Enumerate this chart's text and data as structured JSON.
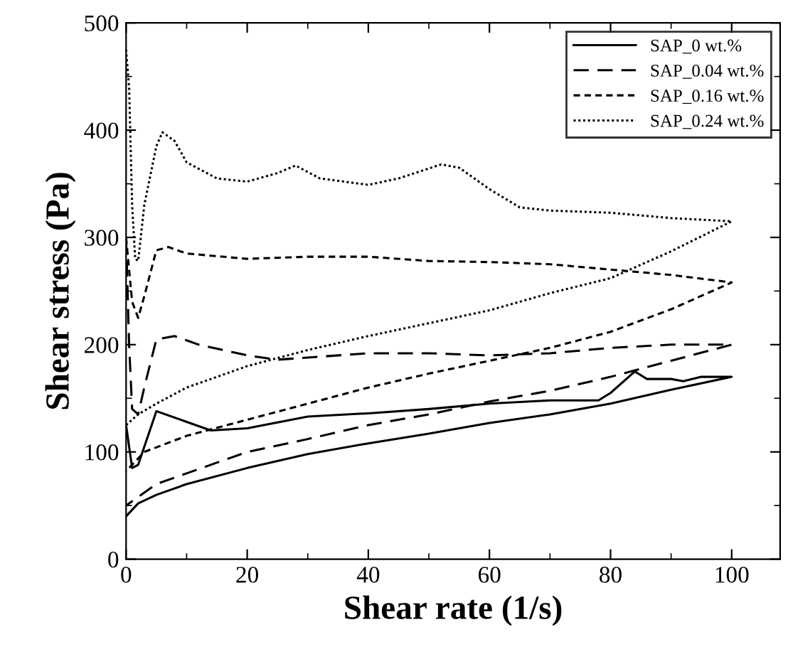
{
  "chart_data": {
    "type": "line",
    "xlabel": "Shear rate (1/s)",
    "ylabel": "Shear stress (Pa)",
    "xlim": [
      0,
      108
    ],
    "ylim": [
      0,
      500
    ],
    "xticks": [
      0,
      20,
      40,
      60,
      80,
      100
    ],
    "yticks": [
      0,
      100,
      200,
      300,
      400,
      500
    ],
    "legend": "top right",
    "grid": false,
    "marker": "none",
    "series": [
      {
        "name": "SAP_0 wt.%",
        "color": "#000000",
        "line_style": "solid",
        "x": [
          0,
          1,
          2,
          5,
          10,
          14,
          20,
          30,
          40,
          50,
          60,
          70,
          78,
          80,
          84,
          86,
          90,
          92,
          95,
          100,
          90,
          80,
          70,
          60,
          50,
          40,
          30,
          20,
          10,
          5,
          2,
          0
        ],
        "values": [
          125,
          85,
          88,
          138,
          128,
          120,
          122,
          133,
          136,
          140,
          145,
          148,
          148,
          155,
          175,
          168,
          168,
          166,
          170,
          170,
          158,
          145,
          135,
          127,
          117,
          108,
          98,
          85,
          70,
          60,
          52,
          40
        ]
      },
      {
        "name": "SAP_0.04 wt.%",
        "color": "#000000",
        "line_style": "dashed",
        "x": [
          0,
          0.5,
          1,
          2,
          3,
          5,
          8,
          12,
          20,
          25,
          30,
          40,
          50,
          60,
          70,
          80,
          90,
          100,
          90,
          80,
          70,
          60,
          50,
          40,
          30,
          20,
          10,
          5,
          0
        ],
        "values": [
          300,
          200,
          140,
          135,
          160,
          205,
          208,
          200,
          190,
          186,
          188,
          192,
          192,
          190,
          192,
          197,
          200,
          200,
          185,
          170,
          157,
          147,
          135,
          125,
          112,
          100,
          80,
          70,
          50
        ]
      },
      {
        "name": "SAP_0.16 wt.%",
        "color": "#000000",
        "line_style": "densedash",
        "x": [
          0,
          1,
          2,
          3,
          5,
          7,
          10,
          20,
          30,
          40,
          50,
          60,
          70,
          80,
          90,
          100,
          90,
          80,
          70,
          60,
          50,
          40,
          30,
          20,
          10,
          3,
          0
        ],
        "values": [
          300,
          240,
          225,
          245,
          288,
          291,
          285,
          280,
          282,
          282,
          278,
          277,
          275,
          270,
          265,
          258,
          233,
          212,
          197,
          185,
          173,
          160,
          145,
          130,
          115,
          100,
          82
        ]
      },
      {
        "name": "SAP_0.24 wt.%",
        "color": "#000000",
        "line_style": "dotted",
        "x": [
          0,
          0.5,
          1,
          1.5,
          2,
          3,
          5,
          6,
          8,
          10,
          15,
          20,
          25,
          28,
          32,
          40,
          45,
          52,
          55,
          60,
          65,
          70,
          80,
          90,
          100,
          90,
          80,
          70,
          60,
          50,
          40,
          30,
          20,
          10,
          5,
          2,
          0
        ],
        "values": [
          475,
          440,
          330,
          280,
          278,
          330,
          385,
          398,
          390,
          370,
          355,
          352,
          360,
          367,
          355,
          349,
          355,
          368,
          365,
          345,
          328,
          325,
          323,
          318,
          315,
          287,
          262,
          248,
          232,
          220,
          208,
          195,
          180,
          160,
          145,
          135,
          125
        ]
      }
    ]
  }
}
